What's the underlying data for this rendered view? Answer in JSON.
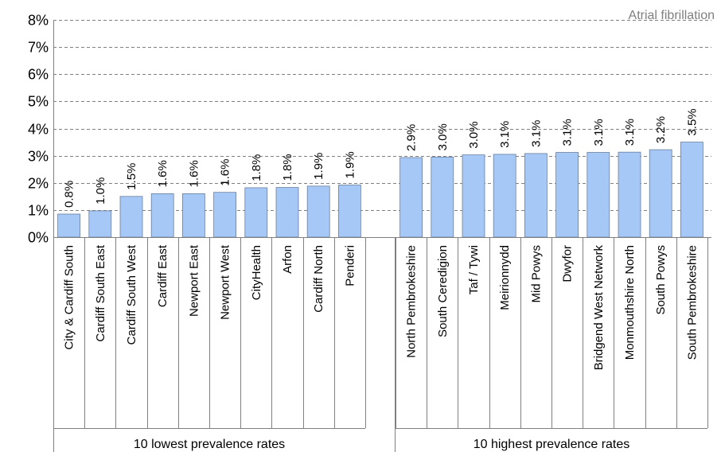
{
  "chart_data": {
    "type": "bar",
    "title": "Atrial fibrillation",
    "ylim": [
      0,
      8
    ],
    "yticks": [
      "0%",
      "1%",
      "2%",
      "3%",
      "4%",
      "5%",
      "6%",
      "7%",
      "8%"
    ],
    "grid": true,
    "bar_color": "#a6c8f7",
    "groups": [
      {
        "name": "10 lowest prevalence rates",
        "categories": [
          "City & Cardiff South",
          "Cardiff South East",
          "Cardiff South West",
          "Cardiff East",
          "Newport East",
          "Newport West",
          "CityHealth",
          "Arfon",
          "Cardiff North",
          "Penderi"
        ],
        "values": [
          0.85,
          0.97,
          1.5,
          1.6,
          1.6,
          1.65,
          1.82,
          1.83,
          1.88,
          1.92
        ],
        "labels": [
          "0.8%",
          "1.0%",
          "1.5%",
          "1.6%",
          "1.6%",
          "1.6%",
          "1.8%",
          "1.8%",
          "1.9%",
          "1.9%"
        ]
      },
      {
        "name": "10 highest prevalence rates",
        "categories": [
          "North Pembrokeshire",
          "South Ceredigion",
          "Taf / Tywi",
          "Meirionnydd",
          "Mid Powys",
          "Dwyfor",
          "Bridgend West Network",
          "Monmouthshire North",
          "South Powys",
          "South Pembrokeshire"
        ],
        "values": [
          2.93,
          2.95,
          3.03,
          3.05,
          3.08,
          3.12,
          3.12,
          3.13,
          3.22,
          3.5
        ],
        "labels": [
          "2.9%",
          "3.0%",
          "3.0%",
          "3.1%",
          "3.1%",
          "3.1%",
          "3.1%",
          "3.1%",
          "3.2%",
          "3.5%"
        ]
      }
    ]
  }
}
